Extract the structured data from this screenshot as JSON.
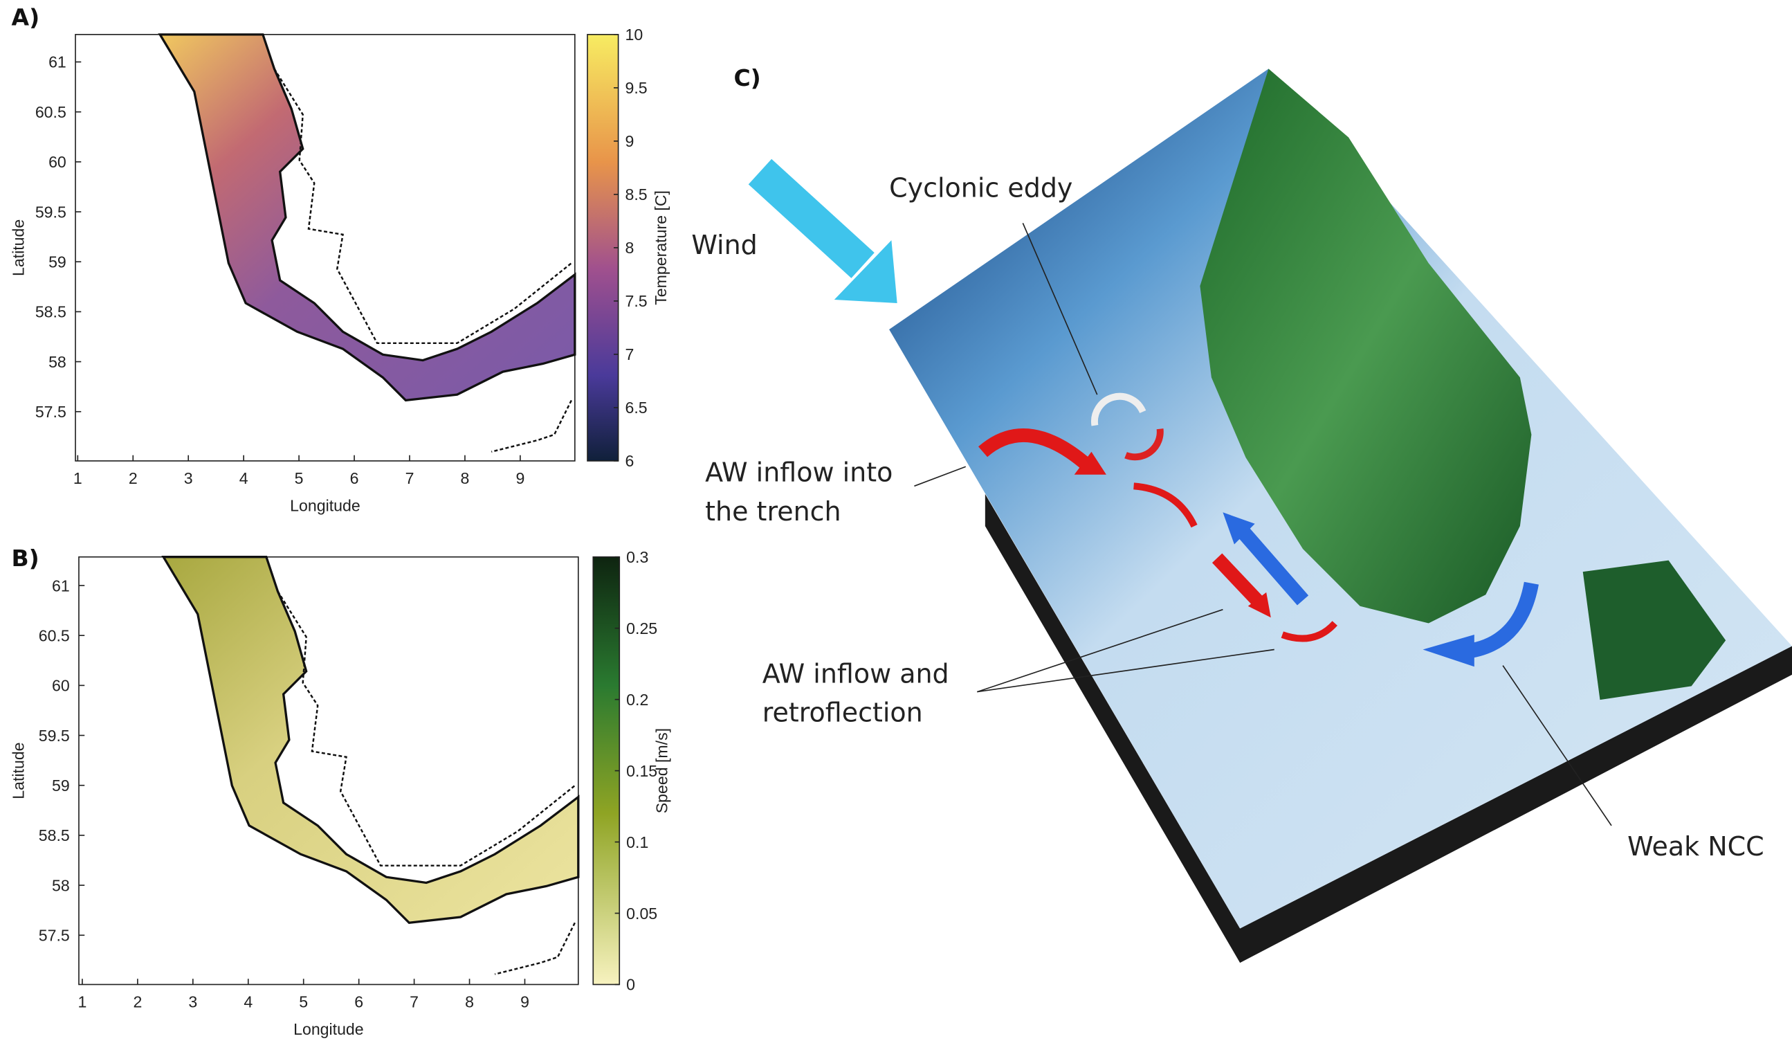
{
  "panels": [
    {
      "label": "A)",
      "xlabel": "Longitude",
      "ylabel": "Latitude",
      "xticks": [
        1,
        2,
        3,
        4,
        5,
        6,
        7,
        8,
        9
      ],
      "yticks": [
        61,
        60.5,
        60,
        59.5,
        59,
        58.5,
        58,
        57.5
      ],
      "colorbar": {
        "label": "Temperature [C]",
        "ticks": [
          10,
          9.5,
          9,
          8.5,
          8,
          7.5,
          7,
          6.5,
          6
        ]
      }
    },
    {
      "label": "B)",
      "xlabel": "Longitude",
      "ylabel": "Latitude",
      "xticks": [
        1,
        2,
        3,
        4,
        5,
        6,
        7,
        8,
        9
      ],
      "yticks": [
        61,
        60.5,
        60,
        59.5,
        59,
        58.5,
        58,
        57.5
      ],
      "colorbar": {
        "label": "Speed [m/s]",
        "ticks": [
          0.3,
          0.25,
          0.2,
          0.15,
          0.1,
          0.05,
          0
        ]
      }
    }
  ],
  "diagram": {
    "label": "C)",
    "annotations": [
      "Wind",
      "Cyclonic eddy",
      "AW inflow into",
      "the trench",
      "AW inflow and",
      "retroflection",
      "Weak NCC"
    ]
  }
}
